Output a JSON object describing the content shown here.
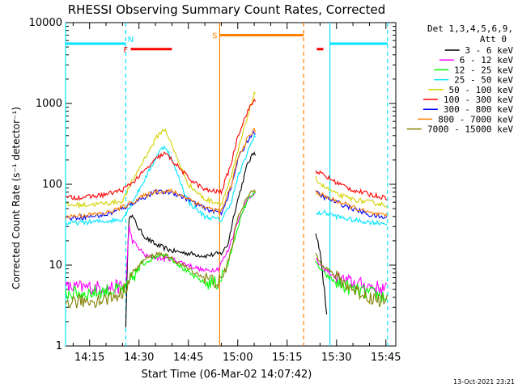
{
  "chart_data": {
    "type": "line",
    "title": "RHESSI Observing Summary Count Rates, Corrected",
    "xlabel": "Start Time (06-Mar-02 14:07:42)",
    "ylabel": "Corrected Count Rate (s⁻¹ detector⁻¹)",
    "ylog": true,
    "xlim": [
      "14:07:42",
      "15:48:00"
    ],
    "ylim": [
      1,
      10000
    ],
    "x_ticks": [
      "14:15",
      "14:30",
      "14:45",
      "15:00",
      "15:15",
      "15:30",
      "15:45"
    ],
    "y_ticks": [
      {
        "v": 1,
        "label": "1"
      },
      {
        "v": 10,
        "label": "10"
      },
      {
        "v": 100,
        "label": "100"
      },
      {
        "v": 1000,
        "label": "1000"
      },
      {
        "v": 10000,
        "label": "10000"
      }
    ],
    "legend_header": [
      "Det 1,3,4,5,6,9,",
      "Att 0"
    ],
    "footer": "13-Oct-2021 23:21",
    "gaps": [
      [
        "15:05:30",
        "15:23:30"
      ]
    ],
    "night_lines": [
      {
        "label": "",
        "time": "14:07:42",
        "color": "#00e5ff"
      },
      {
        "label": "",
        "time": "15:28:00",
        "color": "#00e5ff"
      }
    ],
    "dashed_lines": [
      {
        "time": "14:26:00",
        "color": "#00e5ff"
      },
      {
        "time": "15:45:30",
        "color": "#00e5ff"
      },
      {
        "time": "15:20:00",
        "color": "#ff8000"
      }
    ],
    "saa_lines": [
      {
        "time": "14:54:30",
        "color": "#ff8000"
      }
    ],
    "bars": [
      {
        "label": "N",
        "color": "#00e5ff",
        "start": "14:07:42",
        "end": "14:26:00",
        "y": 5500,
        "label_time": "14:27:30"
      },
      {
        "label": "N",
        "color": "#00e5ff",
        "start": "15:28:00",
        "end": "15:45:30",
        "y": 5500,
        "label_time": ""
      },
      {
        "label": "S",
        "color": "#ff8000",
        "start": "14:54:30",
        "end": "15:20:00",
        "y": 7000,
        "label_time": "14:53:00"
      },
      {
        "label": "F",
        "color": "#ff0000",
        "start": "14:27:30",
        "end": "14:40:00",
        "y": 4700,
        "label_time": "14:26:00"
      },
      {
        "label": "",
        "color": "#ff0000",
        "start": "15:24:00",
        "end": "15:26:00",
        "y": 4700,
        "label_time": ""
      }
    ],
    "series": [
      {
        "name": "3 - 6 keV",
        "color": "#000000",
        "x": [
          "14:26:00",
          "14:27:00",
          "14:28:00",
          "14:30:00",
          "14:32:00",
          "14:35:00",
          "14:40:00",
          "14:45:00",
          "14:50:00",
          "14:55:00",
          "14:57:00",
          "14:59:00",
          "15:01:00",
          "15:03:00",
          "15:05:00",
          "15:23:30",
          "15:24:00",
          "15:25:00",
          "15:26:00",
          "15:27:00"
        ],
        "y": [
          2,
          45,
          40,
          28,
          22,
          18,
          15,
          14,
          13,
          14,
          18,
          45,
          90,
          180,
          250,
          28,
          22,
          15,
          6,
          3
        ]
      },
      {
        "name": "6 - 12 keV",
        "color": "#ff00ff",
        "x": [
          "14:07:42",
          "14:15:00",
          "14:20:00",
          "14:25:00",
          "14:26:00",
          "14:27:00",
          "14:28:00",
          "14:32:00",
          "14:37:00",
          "14:40:00",
          "14:45:00",
          "14:50:00",
          "14:54:00",
          "14:57:00",
          "15:00:00",
          "15:03:00",
          "15:05:00",
          "15:23:30",
          "15:26:00",
          "15:30:00",
          "15:35:00",
          "15:40:00",
          "15:45:30"
        ],
        "y": [
          5.3,
          5.3,
          5.3,
          5.4,
          5.5,
          30,
          20,
          13,
          12,
          12,
          10,
          8.5,
          9,
          15,
          35,
          65,
          80,
          12,
          9,
          7,
          6,
          5.5,
          5
        ]
      },
      {
        "name": "12 - 25 keV",
        "color": "#00ff00",
        "x": [
          "14:07:42",
          "14:15:00",
          "14:20:00",
          "14:25:00",
          "14:26:00",
          "14:28:00",
          "14:32:00",
          "14:37:00",
          "14:40:00",
          "14:45:00",
          "14:50:00",
          "14:54:00",
          "14:57:00",
          "15:00:00",
          "15:03:00",
          "15:05:00",
          "15:23:30",
          "15:26:00",
          "15:30:00",
          "15:35:00",
          "15:40:00",
          "15:45:30"
        ],
        "y": [
          4.5,
          4.5,
          4.8,
          5,
          5,
          7,
          11,
          14,
          12,
          8,
          6,
          6,
          10,
          30,
          65,
          80,
          11,
          8,
          6,
          5,
          4.5,
          4
        ]
      },
      {
        "name": "25 - 50 keV",
        "color": "#00e5ff",
        "x": [
          "14:07:42",
          "14:15:00",
          "14:20:00",
          "14:25:00",
          "14:28:00",
          "14:32:00",
          "14:36:00",
          "14:38:00",
          "14:40:00",
          "14:45:00",
          "14:50:00",
          "14:55:00",
          "14:58:00",
          "15:00:00",
          "15:03:00",
          "15:05:00",
          "15:23:30",
          "15:26:00",
          "15:30:00",
          "15:35:00",
          "15:40:00",
          "15:45:30"
        ],
        "y": [
          33,
          34,
          35,
          37,
          60,
          120,
          250,
          300,
          200,
          60,
          40,
          36,
          60,
          120,
          250,
          400,
          42,
          45,
          40,
          36,
          34,
          33
        ]
      },
      {
        "name": "50 - 100 keV",
        "color": "#d2d200",
        "x": [
          "14:07:42",
          "14:15:00",
          "14:20:00",
          "14:25:00",
          "14:28:00",
          "14:32:00",
          "14:36:00",
          "14:38:00",
          "14:40:00",
          "14:45:00",
          "14:50:00",
          "14:55:00",
          "14:58:00",
          "15:00:00",
          "15:03:00",
          "15:05:00",
          "15:23:30",
          "15:26:00",
          "15:30:00",
          "15:35:00",
          "15:40:00",
          "15:45:30"
        ],
        "y": [
          55,
          56,
          58,
          62,
          110,
          220,
          420,
          480,
          300,
          100,
          65,
          58,
          120,
          250,
          700,
          1300,
          120,
          95,
          75,
          65,
          60,
          55
        ]
      },
      {
        "name": "100 - 300 keV",
        "color": "#ff0000",
        "x": [
          "14:07:42",
          "14:15:00",
          "14:20:00",
          "14:25:00",
          "14:28:00",
          "14:32:00",
          "14:36:00",
          "14:38:00",
          "14:40:00",
          "14:45:00",
          "14:50:00",
          "14:55:00",
          "14:58:00",
          "15:00:00",
          "15:03:00",
          "15:05:00",
          "15:23:30",
          "15:26:00",
          "15:30:00",
          "15:35:00",
          "15:40:00",
          "15:45:30"
        ],
        "y": [
          68,
          70,
          75,
          85,
          105,
          150,
          220,
          240,
          200,
          120,
          85,
          80,
          180,
          400,
          800,
          1100,
          150,
          130,
          105,
          85,
          75,
          68
        ]
      },
      {
        "name": "300 - 800 keV",
        "color": "#0000ff",
        "x": [
          "14:07:42",
          "14:15:00",
          "14:20:00",
          "14:25:00",
          "14:30:00",
          "14:35:00",
          "14:40:00",
          "14:45:00",
          "14:50:00",
          "14:55:00",
          "14:58:00",
          "15:00:00",
          "15:03:00",
          "15:05:00",
          "15:23:30",
          "15:26:00",
          "15:30:00",
          "15:35:00",
          "15:40:00",
          "15:45:30"
        ],
        "y": [
          38,
          40,
          42,
          50,
          65,
          80,
          80,
          65,
          50,
          44,
          90,
          200,
          350,
          450,
          80,
          70,
          60,
          50,
          42,
          38
        ]
      },
      {
        "name": "800 - 7000 keV",
        "color": "#ff8000",
        "x": [
          "14:07:42",
          "14:15:00",
          "14:20:00",
          "14:25:00",
          "14:30:00",
          "14:35:00",
          "14:40:00",
          "14:45:00",
          "14:50:00",
          "14:55:00",
          "14:58:00",
          "15:00:00",
          "15:03:00",
          "15:05:00",
          "15:23:30",
          "15:26:00",
          "15:30:00",
          "15:35:00",
          "15:40:00",
          "15:45:30"
        ],
        "y": [
          40,
          42,
          44,
          52,
          67,
          82,
          82,
          67,
          52,
          46,
          95,
          210,
          370,
          470,
          82,
          72,
          62,
          52,
          44,
          40
        ]
      },
      {
        "name": "7000 - 15000 keV",
        "color": "#808000",
        "x": [
          "14:07:42",
          "14:15:00",
          "14:20:00",
          "14:25:00",
          "14:28:00",
          "14:32:00",
          "14:36:00",
          "14:40:00",
          "14:45:00",
          "14:50:00",
          "14:55:00",
          "14:58:00",
          "15:00:00",
          "15:03:00",
          "15:05:00",
          "15:23:30",
          "15:26:00",
          "15:30:00",
          "15:35:00",
          "15:40:00",
          "15:45:30"
        ],
        "y": [
          3.5,
          3.6,
          3.8,
          4.5,
          8,
          12,
          14,
          12,
          9,
          7,
          6,
          15,
          40,
          70,
          85,
          14,
          10,
          7,
          5,
          4,
          3.5
        ]
      }
    ]
  }
}
